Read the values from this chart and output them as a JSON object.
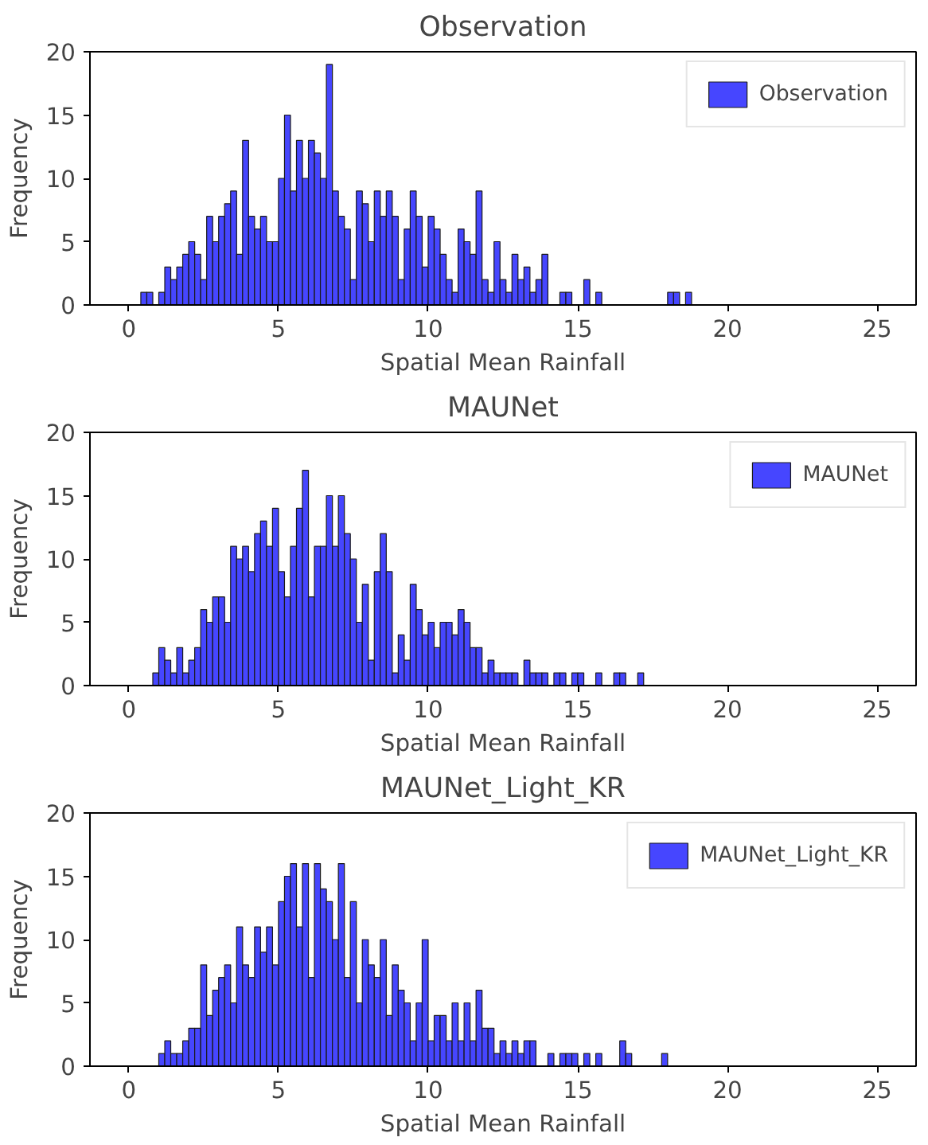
{
  "chart_data": [
    {
      "type": "histogram",
      "title": "Observation",
      "xlabel": "Spatial Mean Rainfall",
      "ylabel": "Frequency",
      "legend": "top right",
      "grid": false,
      "xlim": [
        -1.3,
        26.3
      ],
      "xticks": [
        0,
        5,
        10,
        15,
        20,
        25
      ],
      "ylim": [
        0,
        20
      ],
      "yticks": [
        0,
        5,
        10,
        15,
        20
      ],
      "bins": [
        0.4,
        0.6,
        0.8,
        1.0,
        1.2,
        1.4,
        1.6,
        1.8,
        2.0,
        2.2,
        2.4,
        2.6,
        2.8,
        3.0,
        3.2,
        3.4,
        3.6,
        3.8,
        4.0,
        4.2,
        4.4,
        4.6,
        4.8,
        5.0,
        5.2,
        5.4,
        5.6,
        5.8,
        6.0,
        6.2,
        6.4,
        6.6,
        6.8,
        7.0,
        7.2,
        7.4,
        7.6,
        7.8,
        8.0,
        8.2,
        8.4,
        8.6,
        8.8,
        9.0,
        9.2,
        9.4,
        9.6,
        9.8,
        10.0,
        10.2,
        10.4,
        10.6,
        10.8,
        11.0,
        11.2,
        11.4,
        11.6,
        11.8,
        12.0,
        12.2,
        12.4,
        12.6,
        12.8,
        13.0,
        13.2,
        13.4,
        13.6,
        13.8,
        14.0,
        14.2,
        14.4,
        14.6,
        14.8,
        15.0,
        15.2,
        15.4,
        15.6,
        15.8,
        16.0,
        16.2,
        16.4,
        16.6,
        16.8,
        17.0,
        17.2,
        17.4,
        17.6,
        17.8,
        18.0,
        18.2,
        18.4,
        18.6,
        18.8,
        19.0
      ],
      "series": [
        {
          "name": "Observation",
          "color": "#4646ff",
          "values": [
            1,
            1,
            0,
            1,
            3,
            2,
            3,
            4,
            5,
            4,
            2,
            7,
            5,
            7,
            8,
            9,
            4,
            13,
            7,
            6,
            7,
            5,
            5,
            10,
            15,
            9,
            13,
            10,
            13,
            12,
            10,
            19,
            9,
            7,
            6,
            2,
            9,
            8,
            5,
            9,
            7,
            9,
            7,
            2,
            6,
            9,
            7,
            3,
            7,
            6,
            4,
            2,
            1,
            6,
            5,
            4,
            9,
            2,
            1,
            5,
            2,
            1,
            4,
            2,
            3,
            1,
            2,
            4,
            0,
            0,
            1,
            1,
            0,
            0,
            2,
            0,
            1,
            0,
            0,
            0,
            0,
            0,
            0,
            0,
            0,
            0,
            0,
            0,
            1,
            1,
            0,
            1,
            0
          ]
        }
      ]
    },
    {
      "type": "histogram",
      "title": "MAUNet",
      "xlabel": "Spatial Mean Rainfall",
      "ylabel": "Frequency",
      "legend": "top right",
      "grid": false,
      "xlim": [
        -1.3,
        26.3
      ],
      "xticks": [
        0,
        5,
        10,
        15,
        20,
        25
      ],
      "ylim": [
        0,
        20
      ],
      "yticks": [
        0,
        5,
        10,
        15,
        20
      ],
      "bins": [
        0.8,
        1.0,
        1.2,
        1.4,
        1.6,
        1.8,
        2.0,
        2.2,
        2.4,
        2.6,
        2.8,
        3.0,
        3.2,
        3.4,
        3.6,
        3.8,
        4.0,
        4.2,
        4.4,
        4.6,
        4.8,
        5.0,
        5.2,
        5.4,
        5.6,
        5.8,
        6.0,
        6.2,
        6.4,
        6.6,
        6.8,
        7.0,
        7.2,
        7.4,
        7.6,
        7.8,
        8.0,
        8.2,
        8.4,
        8.6,
        8.8,
        9.0,
        9.2,
        9.4,
        9.6,
        9.8,
        10.0,
        10.2,
        10.4,
        10.6,
        10.8,
        11.0,
        11.2,
        11.4,
        11.6,
        11.8,
        12.0,
        12.2,
        12.4,
        12.6,
        12.8,
        13.0,
        13.2,
        13.4,
        13.6,
        13.8,
        14.0,
        14.2,
        14.4,
        14.6,
        14.8,
        15.0,
        15.2,
        15.4,
        15.6,
        15.8,
        16.0,
        16.2,
        16.4,
        16.6,
        16.8,
        17.0,
        17.2,
        17.4
      ],
      "series": [
        {
          "name": "MAUNet",
          "color": "#4646ff",
          "values": [
            1,
            3,
            2,
            1,
            3,
            1,
            2,
            3,
            6,
            5,
            7,
            7,
            5,
            11,
            10,
            11,
            9,
            12,
            13,
            11,
            14,
            9,
            7,
            11,
            14,
            17,
            7,
            11,
            11,
            15,
            11,
            15,
            12,
            10,
            5,
            8,
            2,
            9,
            12,
            9,
            1,
            4,
            2,
            8,
            6,
            4,
            5,
            3,
            5,
            5,
            4,
            6,
            5,
            3,
            3,
            1,
            2,
            1,
            1,
            1,
            1,
            0,
            2,
            1,
            1,
            1,
            0,
            1,
            1,
            0,
            1,
            1,
            0,
            0,
            1,
            0,
            0,
            1,
            1,
            0,
            0,
            1,
            0
          ]
        }
      ]
    },
    {
      "type": "histogram",
      "title": "MAUNet_Light_KR",
      "xlabel": "Spatial Mean Rainfall",
      "ylabel": "Frequency",
      "legend": "top right",
      "grid": false,
      "xlim": [
        -1.3,
        26.3
      ],
      "xticks": [
        0,
        5,
        10,
        15,
        20,
        25
      ],
      "ylim": [
        0,
        20
      ],
      "yticks": [
        0,
        5,
        10,
        15,
        20
      ],
      "bins": [
        1.0,
        1.2,
        1.4,
        1.6,
        1.8,
        2.0,
        2.2,
        2.4,
        2.6,
        2.8,
        3.0,
        3.2,
        3.4,
        3.6,
        3.8,
        4.0,
        4.2,
        4.4,
        4.6,
        4.8,
        5.0,
        5.2,
        5.4,
        5.6,
        5.8,
        6.0,
        6.2,
        6.4,
        6.6,
        6.8,
        7.0,
        7.2,
        7.4,
        7.6,
        7.8,
        8.0,
        8.2,
        8.4,
        8.6,
        8.8,
        9.0,
        9.2,
        9.4,
        9.6,
        9.8,
        10.0,
        10.2,
        10.4,
        10.6,
        10.8,
        11.0,
        11.2,
        11.4,
        11.6,
        11.8,
        12.0,
        12.2,
        12.4,
        12.6,
        12.8,
        13.0,
        13.2,
        13.4,
        13.6,
        13.8,
        14.0,
        14.2,
        14.4,
        14.6,
        14.8,
        15.0,
        15.2,
        15.4,
        15.6,
        15.8,
        16.0,
        16.2,
        16.4,
        16.6,
        16.8,
        17.0,
        17.2,
        17.4,
        17.6,
        17.8,
        18.0
      ],
      "series": [
        {
          "name": "MAUNet_Light_KR",
          "color": "#4646ff",
          "values": [
            1,
            2,
            1,
            1,
            2,
            3,
            3,
            8,
            4,
            6,
            7,
            8,
            5,
            11,
            8,
            7,
            11,
            9,
            11,
            8,
            13,
            15,
            16,
            11,
            16,
            7,
            16,
            14,
            13,
            10,
            16,
            7,
            13,
            5,
            10,
            8,
            7,
            10,
            4,
            8,
            6,
            5,
            2,
            5,
            10,
            2,
            4,
            4,
            2,
            5,
            2,
            5,
            2,
            6,
            3,
            3,
            1,
            2,
            1,
            2,
            1,
            2,
            2,
            0,
            0,
            1,
            0,
            1,
            1,
            1,
            0,
            1,
            0,
            1,
            0,
            0,
            0,
            2,
            1,
            0,
            0,
            0,
            0,
            0,
            1
          ]
        }
      ]
    }
  ]
}
